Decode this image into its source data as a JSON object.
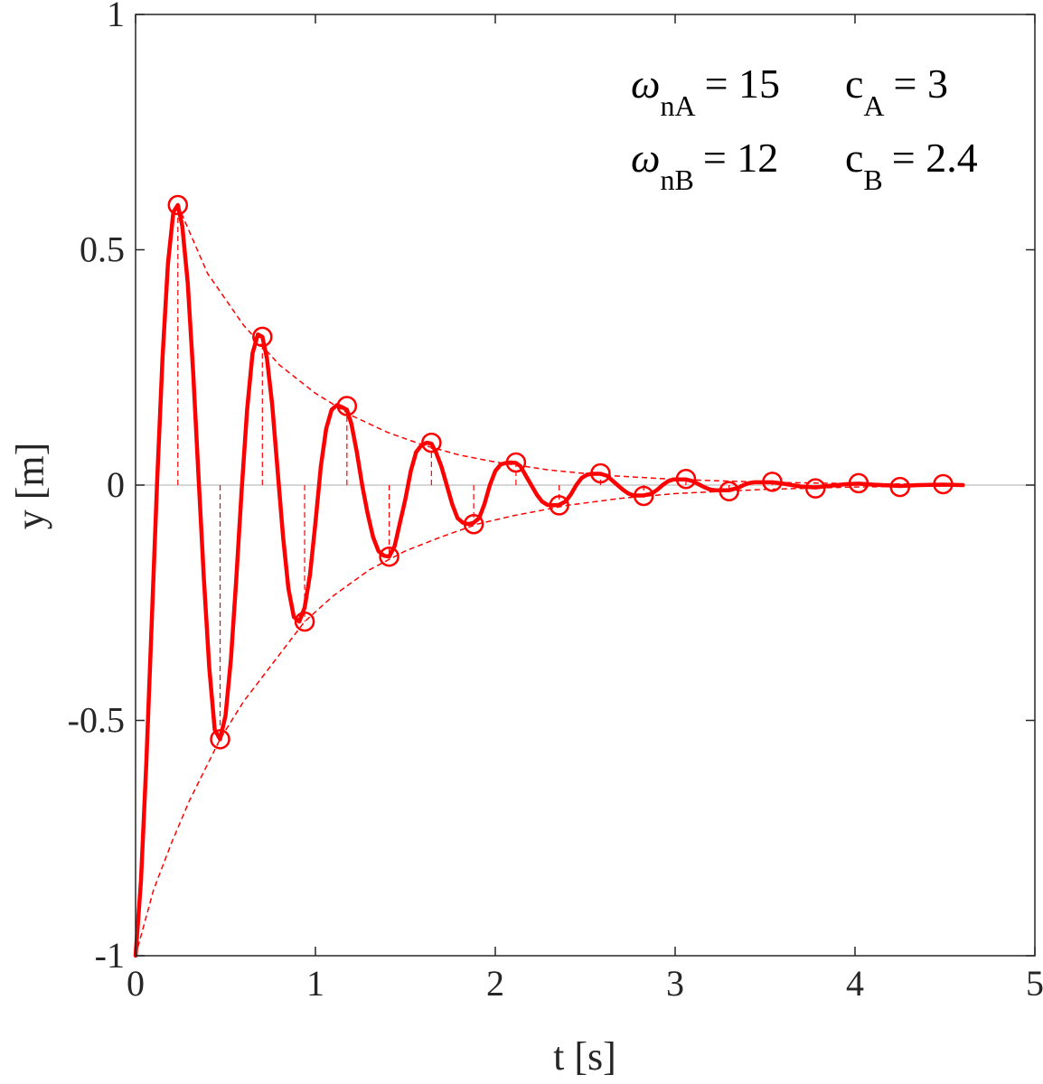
{
  "chart_data": {
    "type": "line",
    "title": "",
    "xlabel": "t [s]",
    "ylabel": "y [m]",
    "xlim": [
      0,
      5
    ],
    "ylim": [
      -1,
      1
    ],
    "xticks": [
      "0",
      "1",
      "2",
      "3",
      "4",
      "5"
    ],
    "yticks": [
      "-1",
      "-0.5",
      "0",
      "0.5",
      "1"
    ],
    "grid": false,
    "zero_line": true,
    "color": "#ff0000",
    "annotations": [
      {
        "symbol": "ω",
        "sub": "nA",
        "value": "= 15",
        "symbol2": "c",
        "sub2": "A",
        "value2": "= 3"
      },
      {
        "symbol": "ω",
        "sub": "nB",
        "value": "= 12",
        "symbol2": "c",
        "sub2": "B",
        "value2": "= 2.4"
      }
    ],
    "response_line": {
      "x": [
        0,
        0.03,
        0.06,
        0.09,
        0.12,
        0.15,
        0.18,
        0.21,
        0.235,
        0.26,
        0.29,
        0.32,
        0.35,
        0.38,
        0.41,
        0.44,
        0.47,
        0.5,
        0.53,
        0.56,
        0.59,
        0.62,
        0.65,
        0.68,
        0.705,
        0.73,
        0.76,
        0.79,
        0.82,
        0.85,
        0.88,
        0.91,
        0.94,
        0.97,
        1.0,
        1.03,
        1.06,
        1.09,
        1.12,
        1.15,
        1.175,
        1.2,
        1.23,
        1.26,
        1.29,
        1.32,
        1.35,
        1.38,
        1.41,
        1.44,
        1.47,
        1.5,
        1.53,
        1.56,
        1.59,
        1.62,
        1.645,
        1.67,
        1.7,
        1.73,
        1.76,
        1.79,
        1.82,
        1.85,
        1.88,
        1.91,
        1.94,
        1.97,
        2.0,
        2.03,
        2.06,
        2.09,
        2.115,
        2.14,
        2.17,
        2.2,
        2.23,
        2.26,
        2.29,
        2.32,
        2.355,
        2.39,
        2.42,
        2.45,
        2.48,
        2.51,
        2.54,
        2.585,
        2.62,
        2.65,
        2.68,
        2.71,
        2.74,
        2.77,
        2.825,
        2.87,
        2.9,
        2.93,
        2.96,
        2.99,
        3.06,
        3.1,
        3.13,
        3.16,
        3.19,
        3.22,
        3.3,
        3.35,
        3.38,
        3.41,
        3.44,
        3.54,
        3.6,
        3.65,
        3.7,
        3.78,
        3.85,
        3.9,
        3.95,
        4.02,
        4.1,
        4.15,
        4.25,
        4.35,
        4.49,
        4.6
      ],
      "y": [
        -1.0,
        -0.84,
        -0.59,
        -0.29,
        0.01,
        0.27,
        0.47,
        0.58,
        0.595,
        0.55,
        0.43,
        0.24,
        0.02,
        -0.2,
        -0.39,
        -0.52,
        -0.54,
        -0.49,
        -0.37,
        -0.2,
        -0.01,
        0.16,
        0.28,
        0.32,
        0.315,
        0.27,
        0.17,
        0.03,
        -0.11,
        -0.22,
        -0.28,
        -0.29,
        -0.26,
        -0.19,
        -0.08,
        0.04,
        0.12,
        0.16,
        0.17,
        0.165,
        0.16,
        0.13,
        0.07,
        0.0,
        -0.06,
        -0.11,
        -0.14,
        -0.15,
        -0.152,
        -0.13,
        -0.08,
        -0.03,
        0.03,
        0.07,
        0.085,
        0.09,
        0.088,
        0.07,
        0.04,
        0.0,
        -0.04,
        -0.07,
        -0.08,
        -0.083,
        -0.08,
        -0.07,
        -0.04,
        0.0,
        0.03,
        0.044,
        0.047,
        0.048,
        0.047,
        0.04,
        0.02,
        0.0,
        -0.02,
        -0.035,
        -0.042,
        -0.043,
        -0.042,
        -0.035,
        -0.02,
        0.0,
        0.015,
        0.022,
        0.024,
        0.024,
        0.02,
        0.01,
        0.0,
        -0.01,
        -0.018,
        -0.022,
        -0.022,
        -0.018,
        -0.01,
        0.0,
        0.008,
        0.012,
        0.012,
        0.008,
        0.002,
        -0.004,
        -0.009,
        -0.011,
        -0.011,
        -0.006,
        0.0,
        0.004,
        0.006,
        0.006,
        0.003,
        0.0,
        -0.003,
        -0.005,
        -0.002,
        0.0,
        0.002,
        0.003,
        0.001,
        0.0,
        -0.002,
        0.0,
        0.001,
        0.0
      ]
    },
    "peaks": {
      "x": [
        0.235,
        0.47,
        0.705,
        0.94,
        1.175,
        1.41,
        1.645,
        1.88,
        2.115,
        2.355,
        2.585,
        2.825,
        3.06,
        3.3,
        3.54,
        3.78,
        4.02,
        4.25,
        4.49
      ],
      "y": [
        0.595,
        -0.54,
        0.315,
        -0.29,
        0.168,
        -0.152,
        0.09,
        -0.083,
        0.048,
        -0.043,
        0.025,
        -0.023,
        0.013,
        -0.013,
        0.007,
        -0.007,
        0.004,
        -0.004,
        0.002
      ]
    },
    "upper_envelope": {
      "x": [
        0.235,
        0.4,
        0.6,
        0.8,
        1.0,
        1.2,
        1.4,
        1.6,
        1.8,
        2.0,
        2.3,
        2.6,
        3.0,
        3.5,
        4.0,
        4.5
      ],
      "y": [
        0.595,
        0.45,
        0.34,
        0.255,
        0.195,
        0.148,
        0.112,
        0.085,
        0.064,
        0.049,
        0.032,
        0.021,
        0.012,
        0.006,
        0.003,
        0.0015
      ]
    },
    "lower_envelope": {
      "x": [
        0,
        0.1,
        0.2,
        0.3,
        0.47,
        0.6,
        0.8,
        0.94,
        1.1,
        1.3,
        1.5,
        1.7,
        1.9,
        2.1,
        2.4,
        2.7,
        3.0,
        3.5,
        4.0,
        4.5
      ],
      "y": [
        -1.0,
        -0.86,
        -0.76,
        -0.67,
        -0.54,
        -0.46,
        -0.36,
        -0.29,
        -0.235,
        -0.18,
        -0.14,
        -0.11,
        -0.083,
        -0.065,
        -0.043,
        -0.028,
        -0.018,
        -0.009,
        -0.004,
        -0.002
      ]
    }
  }
}
